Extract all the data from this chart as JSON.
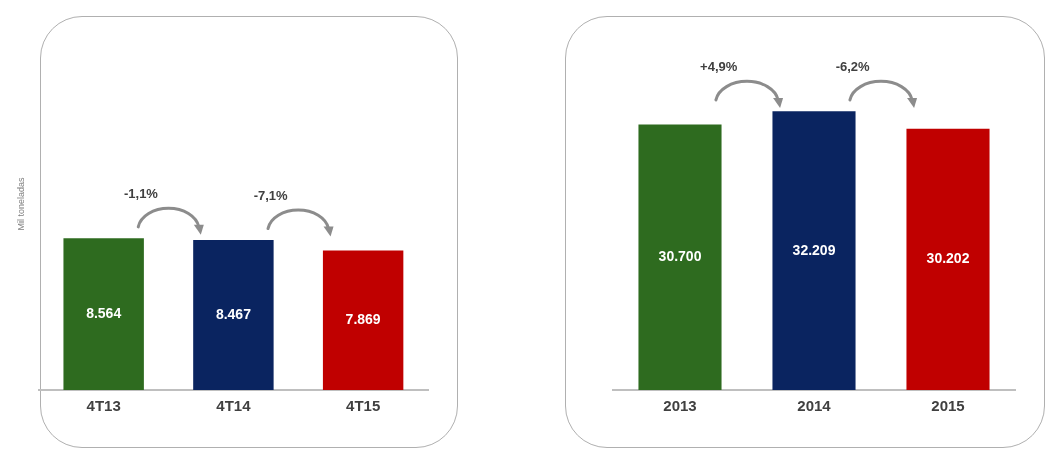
{
  "chart_data": [
    {
      "type": "bar",
      "ylabel": "Mil toneladas",
      "categories": [
        "4T13",
        "4T14",
        "4T15"
      ],
      "values": [
        8564,
        8467,
        7869
      ],
      "value_labels": [
        "8.564",
        "8.467",
        "7.869"
      ],
      "colors": [
        "#2e6b1f",
        "#0a2460",
        "#c00000"
      ],
      "ylim": [
        0,
        21000
      ],
      "grid": false,
      "legend": false,
      "annotations": [
        "-1,1%",
        "-7,1%"
      ]
    },
    {
      "type": "bar",
      "categories": [
        "2013",
        "2014",
        "2015"
      ],
      "values": [
        30700,
        32209,
        30202
      ],
      "value_labels": [
        "30.700",
        "32.209",
        "30.202"
      ],
      "colors": [
        "#2e6b1f",
        "#0a2460",
        "#c00000"
      ],
      "ylim": [
        0,
        43000
      ],
      "grid": false,
      "legend": false,
      "annotations": [
        "+4,9%",
        "-6,2%"
      ]
    }
  ]
}
